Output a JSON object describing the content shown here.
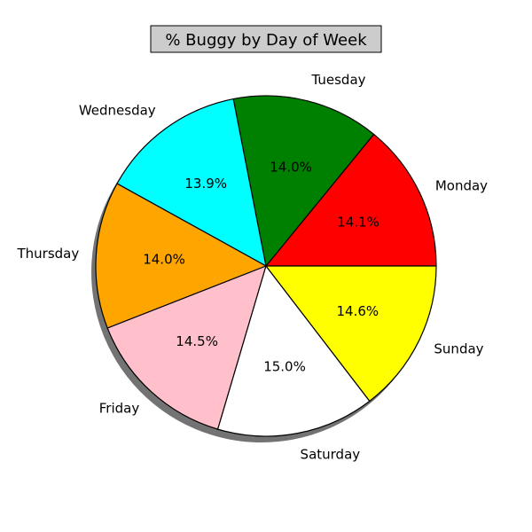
{
  "chart_data": {
    "type": "pie",
    "title": "% Buggy by Day of Week",
    "categories": [
      "Monday",
      "Tuesday",
      "Wednesday",
      "Thursday",
      "Friday",
      "Saturday",
      "Sunday"
    ],
    "values": [
      14.1,
      14.0,
      13.9,
      14.0,
      14.5,
      15.0,
      14.6
    ],
    "value_labels": [
      "14.1%",
      "14.0%",
      "13.9%",
      "14.0%",
      "14.5%",
      "15.0%",
      "14.6%"
    ],
    "colors": [
      "#ff0000",
      "#008000",
      "#00ffff",
      "#ffa500",
      "#ffc0cb",
      "#ffffff",
      "#ffff00"
    ],
    "start_angle_deg": 0,
    "direction": "counterclockwise",
    "shadow": true,
    "title_box_color": "#cccccc",
    "legend": "none"
  }
}
